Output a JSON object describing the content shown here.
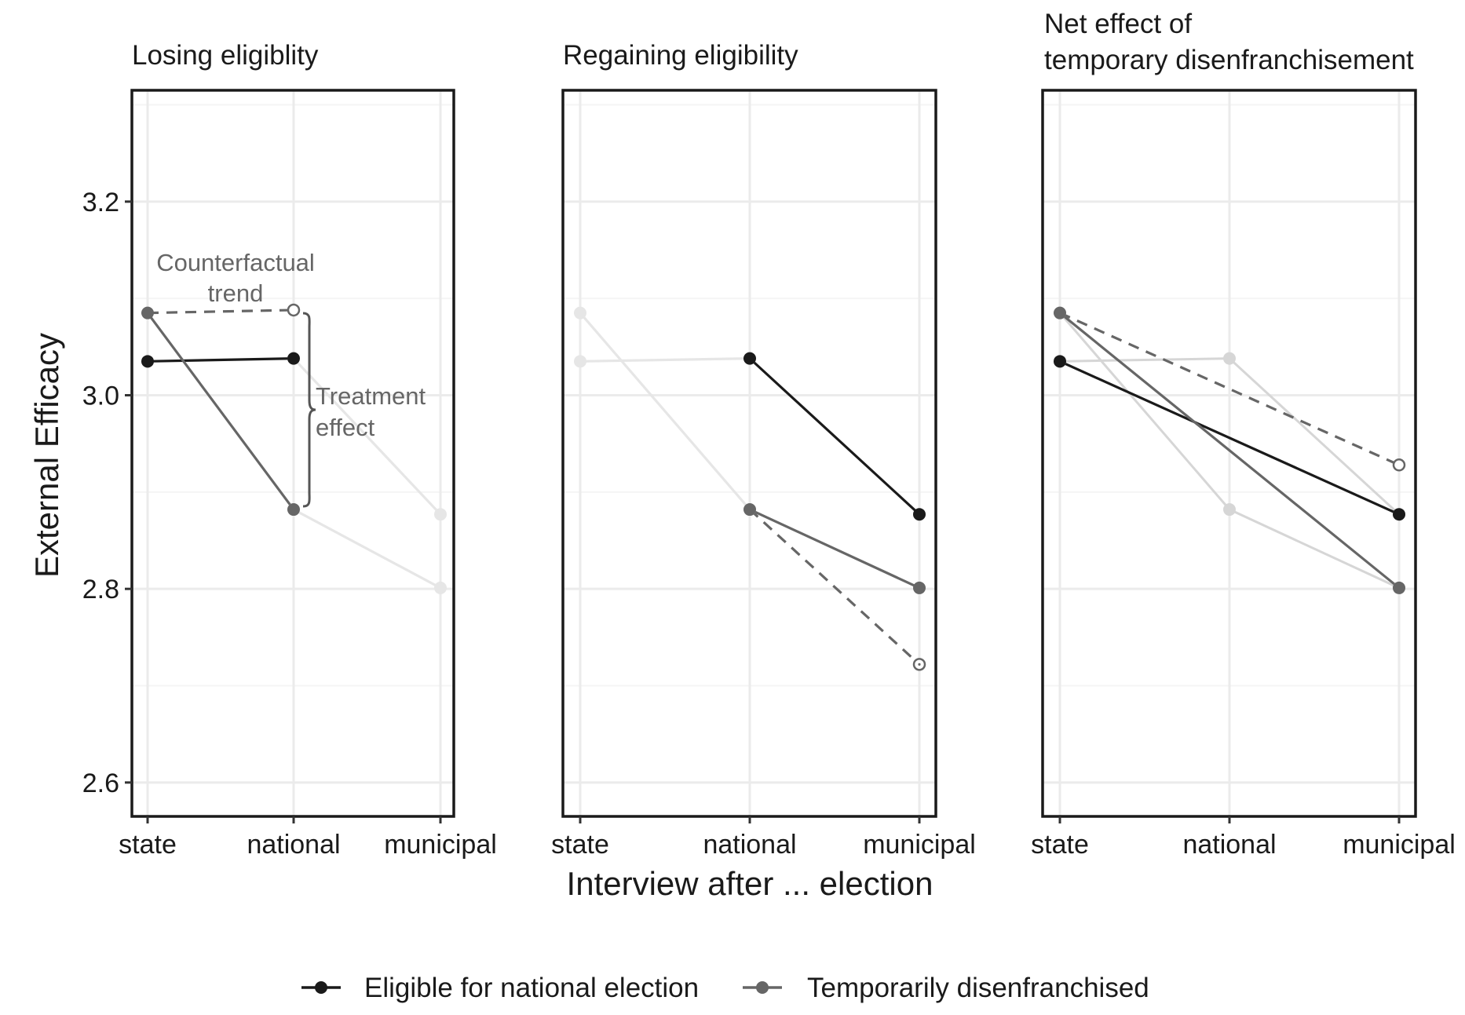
{
  "chart_data": {
    "type": "line",
    "ylabel": "External Efficacy",
    "xlabel": "Interview after ... election",
    "categories": [
      "state",
      "national",
      "municipal"
    ],
    "ylim": [
      2.565,
      3.315
    ],
    "yticks": [
      2.6,
      2.8,
      3.0,
      3.2
    ],
    "grid": true,
    "legend_position": "bottom",
    "legend": [
      {
        "label": "Eligible for national election",
        "color": "#1a1a1a"
      },
      {
        "label": "Temporarily disenfranchised",
        "color": "#666666"
      }
    ],
    "colors": {
      "eligible": "#1a1a1a",
      "disenfranchised": "#666666",
      "faded": "#e6e6e6",
      "faded_mid": "#d6d6d6",
      "grid_major": "#ebebeb",
      "grid_minor": "#f5f5f5"
    },
    "panels": [
      {
        "title": [
          "Losing eligiblity"
        ],
        "series": [
          {
            "role": "faded",
            "points": [
              [
                "national",
                2.882
              ],
              [
                "municipal",
                2.801
              ]
            ]
          },
          {
            "role": "faded",
            "points": [
              [
                "national",
                3.038
              ],
              [
                "municipal",
                2.877
              ]
            ]
          },
          {
            "role": "eligible",
            "points": [
              [
                "state",
                3.035
              ],
              [
                "national",
                3.038
              ]
            ]
          },
          {
            "role": "disenfranchised",
            "points": [
              [
                "state",
                3.085
              ],
              [
                "national",
                2.882
              ]
            ]
          },
          {
            "role": "counterfactual",
            "points": [
              [
                "state",
                3.085
              ],
              [
                "national",
                3.088
              ]
            ]
          }
        ],
        "annotations": [
          {
            "lines": [
              "Counterfactual",
              "trend"
            ]
          },
          {
            "lines": [
              "Treatment",
              "effect"
            ]
          }
        ]
      },
      {
        "title": [
          "Regaining eligibility"
        ],
        "series": [
          {
            "role": "faded",
            "points": [
              [
                "state",
                3.035
              ],
              [
                "national",
                3.038
              ]
            ]
          },
          {
            "role": "faded",
            "points": [
              [
                "state",
                3.085
              ],
              [
                "national",
                2.882
              ]
            ]
          },
          {
            "role": "eligible",
            "points": [
              [
                "national",
                3.038
              ],
              [
                "municipal",
                2.877
              ]
            ]
          },
          {
            "role": "disenfranchised",
            "points": [
              [
                "national",
                2.882
              ],
              [
                "municipal",
                2.801
              ]
            ]
          },
          {
            "role": "counterfactual",
            "points": [
              [
                "national",
                2.882
              ],
              [
                "municipal",
                2.722
              ]
            ]
          }
        ],
        "annotations": []
      },
      {
        "title": [
          "Net effect of",
          "temporary disenfranchisement"
        ],
        "series": [
          {
            "role": "faded_mid",
            "points": [
              [
                "state",
                3.035
              ],
              [
                "national",
                3.038
              ],
              [
                "municipal",
                2.877
              ]
            ]
          },
          {
            "role": "faded_mid",
            "points": [
              [
                "state",
                3.085
              ],
              [
                "national",
                2.882
              ],
              [
                "municipal",
                2.801
              ]
            ]
          },
          {
            "role": "eligible",
            "points": [
              [
                "state",
                3.035
              ],
              [
                "municipal",
                2.877
              ]
            ]
          },
          {
            "role": "disenfranchised",
            "points": [
              [
                "state",
                3.085
              ],
              [
                "municipal",
                2.801
              ]
            ]
          },
          {
            "role": "counterfactual",
            "points": [
              [
                "state",
                3.085
              ],
              [
                "municipal",
                2.928
              ]
            ]
          }
        ],
        "annotations": []
      }
    ]
  }
}
